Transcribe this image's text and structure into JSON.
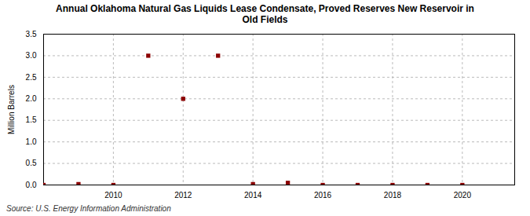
{
  "chart_data": {
    "type": "scatter",
    "title": "Annual Oklahoma Natural Gas Liquids Lease Condensate, Proved Reserves New Reservoir in\nOld Fields",
    "ylabel": "Million Barrels",
    "annotations": [
      "Source: U.S. Energy Information Administration"
    ],
    "x": [
      2008,
      2009,
      2010,
      2011,
      2012,
      2013,
      2014,
      2015,
      2016,
      2017,
      2018,
      2019,
      2020
    ],
    "values": [
      0.0,
      0.02,
      0.0,
      3.0,
      2.0,
      3.0,
      0.02,
      0.05,
      0.0,
      0.0,
      0.0,
      0.0,
      0.0
    ],
    "color": "#8b0000",
    "marker": "square",
    "xlim": [
      2008,
      2021.5
    ],
    "ylim": [
      0,
      3.5
    ],
    "xticks": [
      2010,
      2012,
      2014,
      2016,
      2018,
      2020
    ],
    "yticks": [
      {
        "value": 0,
        "label": "0.0"
      },
      0.5,
      {
        "value": 1,
        "label": "1.0"
      },
      1.5,
      {
        "value": 2,
        "label": "2.0"
      },
      2.5,
      {
        "value": 3,
        "label": "3.0"
      },
      3.5
    ],
    "grid": true
  }
}
